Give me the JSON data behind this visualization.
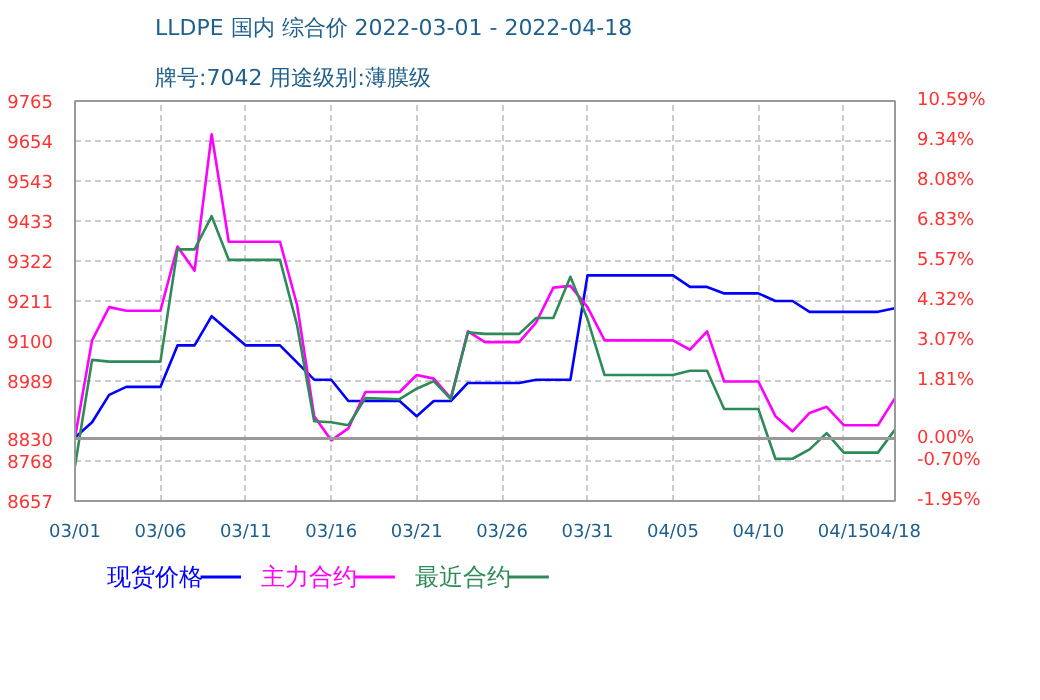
{
  "chart_data": {
    "type": "line",
    "title": "LLDPE 国内 综合价 2022-03-01 - 2022-04-18",
    "subtitle": "牌号:7042 用途级别:薄膜级",
    "xlim": [
      "2022-03-01",
      "2022-04-18"
    ],
    "xticks": [
      {
        "value": "2022-03-01",
        "label": "03/01"
      },
      {
        "value": "2022-03-06",
        "label": "03/06"
      },
      {
        "value": "2022-03-11",
        "label": "03/11"
      },
      {
        "value": "2022-03-16",
        "label": "03/16"
      },
      {
        "value": "2022-03-21",
        "label": "03/21"
      },
      {
        "value": "2022-03-26",
        "label": "03/26"
      },
      {
        "value": "2022-03-31",
        "label": "03/31"
      },
      {
        "value": "2022-04-05",
        "label": "04/05"
      },
      {
        "value": "2022-04-10",
        "label": "04/10"
      },
      {
        "value": "2022-04-15",
        "label": "04/15"
      },
      {
        "value": "2022-04-18",
        "label": "04/18"
      }
    ],
    "ylim": [
      8657,
      9765
    ],
    "yticks": [
      8657,
      8768,
      8830,
      8989,
      9100,
      9211,
      9322,
      9433,
      9543,
      9654,
      9765
    ],
    "y2lim": [
      -1.95,
      10.59
    ],
    "y2ticks": [
      {
        "value": -1.95,
        "label": "-1.95%"
      },
      {
        "value": -0.7,
        "label": "-0.70%"
      },
      {
        "value": 0,
        "label": "0.00%"
      },
      {
        "value": 1.81,
        "label": "1.81%"
      },
      {
        "value": 3.07,
        "label": "3.07%"
      },
      {
        "value": 4.32,
        "label": "4.32%"
      },
      {
        "value": 5.57,
        "label": "5.57%"
      },
      {
        "value": 6.83,
        "label": "6.83%"
      },
      {
        "value": 8.08,
        "label": "8.08%"
      },
      {
        "value": 9.34,
        "label": "9.34%"
      },
      {
        "value": 10.59,
        "label": "10.59%"
      }
    ],
    "grid": true,
    "legend": "bottom",
    "line_style": "solid",
    "ref_lines": [
      {
        "axis": "y",
        "value": 8830,
        "color": "#999999"
      }
    ],
    "series": [
      {
        "name": "现货价格",
        "color": "#0000ff",
        "x": [
          "2022-03-01",
          "2022-03-02",
          "2022-03-03",
          "2022-03-04",
          "2022-03-06",
          "2022-03-07",
          "2022-03-08",
          "2022-03-09",
          "2022-03-11",
          "2022-03-13",
          "2022-03-15",
          "2022-03-16",
          "2022-03-17",
          "2022-03-20",
          "2022-03-21",
          "2022-03-22",
          "2022-03-23",
          "2022-03-24",
          "2022-03-25",
          "2022-03-27",
          "2022-03-28",
          "2022-03-30",
          "2022-03-31",
          "2022-04-05",
          "2022-04-06",
          "2022-04-07",
          "2022-04-08",
          "2022-04-10",
          "2022-04-11",
          "2022-04-12",
          "2022-04-13",
          "2022-04-17",
          "2022-04-18"
        ],
        "values": [
          8833,
          8875,
          8951,
          8973,
          8973,
          9088,
          9088,
          9169,
          9088,
          9088,
          8993,
          8993,
          8934,
          8934,
          8892,
          8934,
          8934,
          8984,
          8984,
          8984,
          8993,
          8993,
          9282,
          9282,
          9250,
          9250,
          9232,
          9232,
          9211,
          9211,
          9181,
          9181,
          9191
        ]
      },
      {
        "name": "主力合约",
        "color": "#ff00ff",
        "x": [
          "2022-03-01",
          "2022-03-02",
          "2022-03-03",
          "2022-03-04",
          "2022-03-06",
          "2022-03-07",
          "2022-03-08",
          "2022-03-09",
          "2022-03-10",
          "2022-03-13",
          "2022-03-14",
          "2022-03-15",
          "2022-03-16",
          "2022-03-17",
          "2022-03-18",
          "2022-03-20",
          "2022-03-21",
          "2022-03-22",
          "2022-03-23",
          "2022-03-24",
          "2022-03-25",
          "2022-03-27",
          "2022-03-28",
          "2022-03-29",
          "2022-03-30",
          "2022-03-31",
          "2022-04-01",
          "2022-04-05",
          "2022-04-06",
          "2022-04-07",
          "2022-04-08",
          "2022-04-10",
          "2022-04-11",
          "2022-04-12",
          "2022-04-13",
          "2022-04-14",
          "2022-04-15",
          "2022-04-17",
          "2022-04-18"
        ],
        "values": [
          8833,
          9102,
          9194,
          9184,
          9184,
          9362,
          9295,
          9673,
          9375,
          9375,
          9200,
          8892,
          8825,
          8858,
          8959,
          8959,
          9006,
          8996,
          8942,
          9127,
          9097,
          9097,
          9152,
          9248,
          9253,
          9194,
          9102,
          9102,
          9076,
          9127,
          8988,
          8988,
          8892,
          8850,
          8901,
          8918,
          8867,
          8867,
          8942
        ]
      },
      {
        "name": "最近合约",
        "color": "#2e8b57",
        "x": [
          "2022-03-01",
          "2022-03-02",
          "2022-03-03",
          "2022-03-06",
          "2022-03-07",
          "2022-03-08",
          "2022-03-09",
          "2022-03-10",
          "2022-03-13",
          "2022-03-14",
          "2022-03-15",
          "2022-03-16",
          "2022-03-17",
          "2022-03-18",
          "2022-03-20",
          "2022-03-21",
          "2022-03-22",
          "2022-03-23",
          "2022-03-24",
          "2022-03-25",
          "2022-03-27",
          "2022-03-28",
          "2022-03-29",
          "2022-03-30",
          "2022-03-31",
          "2022-04-01",
          "2022-04-05",
          "2022-04-06",
          "2022-04-07",
          "2022-04-08",
          "2022-04-10",
          "2022-04-11",
          "2022-04-12",
          "2022-04-13",
          "2022-04-14",
          "2022-04-15",
          "2022-04-17",
          "2022-04-18"
        ],
        "values": [
          8754,
          9048,
          9043,
          9043,
          9354,
          9354,
          9446,
          9325,
          9325,
          9144,
          8878,
          8875,
          8867,
          8942,
          8939,
          8968,
          8989,
          8939,
          9124,
          9120,
          9120,
          9164,
          9164,
          9278,
          9161,
          9006,
          9006,
          9018,
          9018,
          8912,
          8912,
          8774,
          8774,
          8800,
          8845,
          8791,
          8791,
          8855
        ]
      }
    ]
  }
}
